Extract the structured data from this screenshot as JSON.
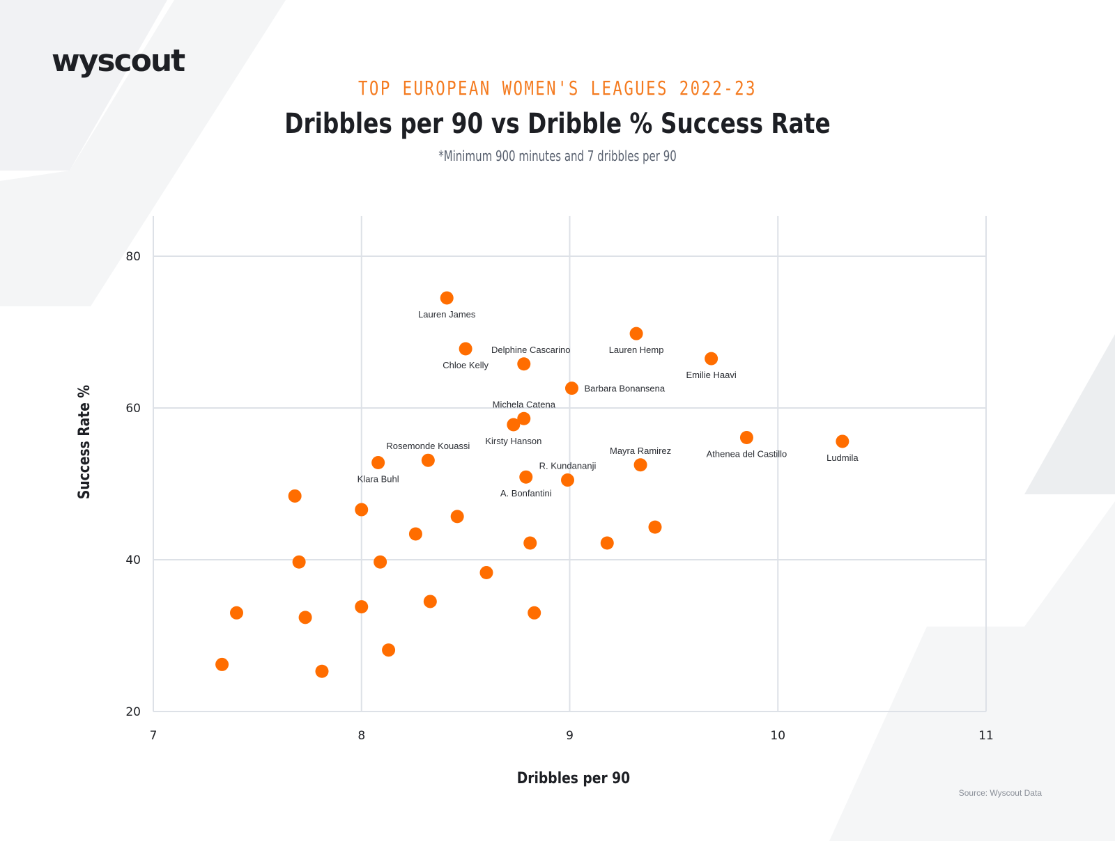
{
  "brand": {
    "logo_text": "wyscout"
  },
  "header": {
    "kicker": "TOP EUROPEAN WOMEN'S LEAGUES 2022-23",
    "title": "Dribbles per 90 vs Dribble % Success Rate",
    "subtitle": "*Minimum 900 minutes and 7 dribbles per 90"
  },
  "footer": {
    "source": "Source: Wyscout Data"
  },
  "colors": {
    "point": "#ff6d00",
    "kicker": "#f47b20",
    "grid": "#dde1e7",
    "text": "#1d1f24"
  },
  "chart_data": {
    "type": "scatter",
    "xlabel": "Dribbles per 90",
    "ylabel": "Success Rate %",
    "xlim": [
      7,
      11
    ],
    "ylim": [
      20,
      80
    ],
    "xticks": [
      7,
      8,
      9,
      10,
      11
    ],
    "yticks": [
      20,
      40,
      60,
      80
    ],
    "grid": true,
    "points": [
      {
        "name": "Lauren James",
        "x": 8.41,
        "y": 74.5
      },
      {
        "name": "Chloe Kelly",
        "x": 8.5,
        "y": 67.8
      },
      {
        "name": "Delphine Cascarino",
        "x": 8.78,
        "y": 65.8
      },
      {
        "name": "Lauren Hemp",
        "x": 9.32,
        "y": 69.8
      },
      {
        "name": "Emilie Haavi",
        "x": 9.68,
        "y": 66.5
      },
      {
        "name": "Barbara Bonansena",
        "x": 9.01,
        "y": 62.6
      },
      {
        "name": "Michela Catena",
        "x": 8.78,
        "y": 58.6
      },
      {
        "name": "Kirsty Hanson",
        "x": 8.73,
        "y": 57.8
      },
      {
        "name": "Rosemonde Kouassi",
        "x": 8.32,
        "y": 53.1
      },
      {
        "name": "Klara Buhl",
        "x": 8.08,
        "y": 52.8
      },
      {
        "name": "Athenea del Castillo",
        "x": 9.85,
        "y": 56.1
      },
      {
        "name": "Ludmila",
        "x": 10.31,
        "y": 55.6
      },
      {
        "name": "Mayra Ramirez",
        "x": 9.34,
        "y": 52.5
      },
      {
        "name": "R. Kundananji",
        "x": 8.99,
        "y": 50.5
      },
      {
        "name": "A. Bonfantini",
        "x": 8.79,
        "y": 50.9
      },
      {
        "x": 7.68,
        "y": 48.4
      },
      {
        "x": 8.0,
        "y": 46.6
      },
      {
        "x": 8.46,
        "y": 45.7
      },
      {
        "x": 8.26,
        "y": 43.4
      },
      {
        "x": 8.81,
        "y": 42.2
      },
      {
        "x": 9.18,
        "y": 42.2
      },
      {
        "x": 9.41,
        "y": 44.3
      },
      {
        "x": 7.7,
        "y": 39.7
      },
      {
        "x": 8.09,
        "y": 39.7
      },
      {
        "x": 8.6,
        "y": 38.3
      },
      {
        "x": 7.4,
        "y": 33.0
      },
      {
        "x": 7.73,
        "y": 32.4
      },
      {
        "x": 8.0,
        "y": 33.8
      },
      {
        "x": 8.33,
        "y": 34.5
      },
      {
        "x": 8.83,
        "y": 33.0
      },
      {
        "x": 8.13,
        "y": 28.1
      },
      {
        "x": 7.33,
        "y": 26.2
      },
      {
        "x": 7.81,
        "y": 25.3
      }
    ]
  }
}
